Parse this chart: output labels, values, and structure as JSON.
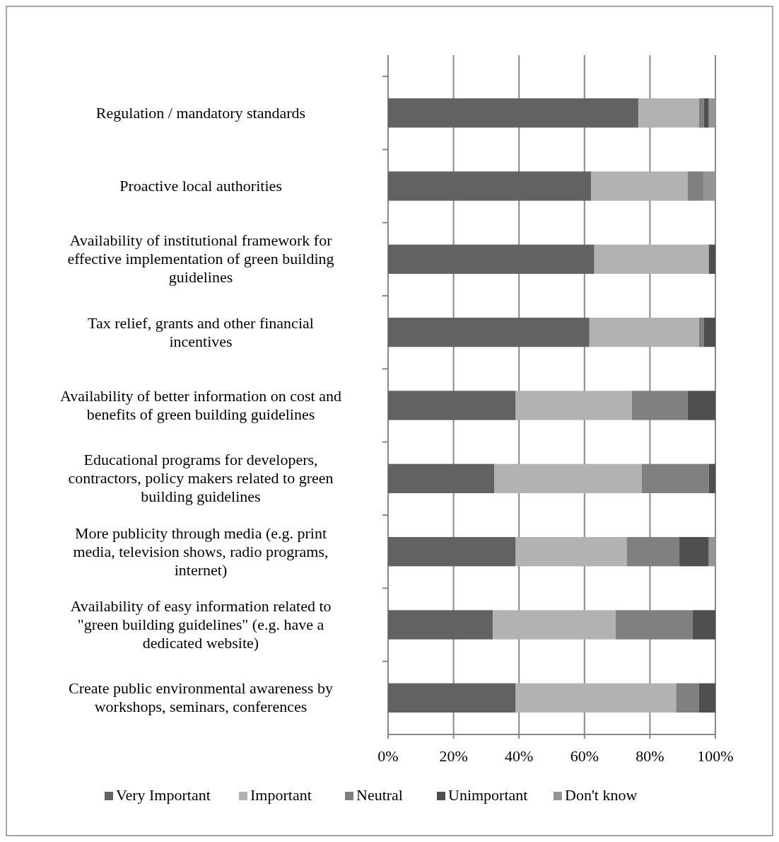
{
  "chart_data": {
    "type": "bar",
    "orientation": "horizontal",
    "stacked": true,
    "categories": [
      "Regulation / mandatory standards",
      "Proactive local authorities",
      "Availability of institutional framework for effective implementation of green building guidelines",
      "Tax relief, grants and other financial incentives",
      "Availability of better information on cost and benefits of green building guidelines",
      "Educational programs for developers, contractors, policy makers related to green building guidelines",
      "More publicity through media (e.g. print media, television shows, radio programs, internet)",
      "Availability of easy information related to \"green building guidelines\" (e.g. have a dedicated website)",
      "Create public environmental awareness by workshops, seminars, conferences"
    ],
    "series": [
      {
        "name": "Very Important",
        "color": "#626262",
        "values": [
          76.5,
          62,
          63,
          61.5,
          39,
          32.5,
          39,
          32,
          39
        ]
      },
      {
        "name": "Important",
        "color": "#b2b2b2",
        "values": [
          18.5,
          29.5,
          35,
          33.5,
          35.5,
          45,
          34,
          37.5,
          49
        ]
      },
      {
        "name": "Neutral",
        "color": "#808080",
        "values": [
          1.5,
          5,
          0,
          1.5,
          17,
          20.5,
          16,
          23.5,
          7
        ]
      },
      {
        "name": "Unimportant",
        "color": "#4f4f4f",
        "values": [
          1.5,
          0,
          2,
          3.5,
          8.5,
          2,
          9,
          7,
          5
        ]
      },
      {
        "name": "Don't know",
        "color": "#959595",
        "values": [
          2,
          3.5,
          0,
          0,
          0,
          0,
          2,
          0,
          0
        ]
      }
    ],
    "xlim": [
      0,
      100
    ],
    "xticks": [
      {
        "value": 0,
        "label": "0%"
      },
      {
        "value": 20,
        "label": "20%"
      },
      {
        "value": 40,
        "label": "40%"
      },
      {
        "value": 60,
        "label": "60%"
      },
      {
        "value": 80,
        "label": "80%"
      },
      {
        "value": 100,
        "label": "100%"
      }
    ],
    "grid": "x",
    "legend": "bottom"
  }
}
